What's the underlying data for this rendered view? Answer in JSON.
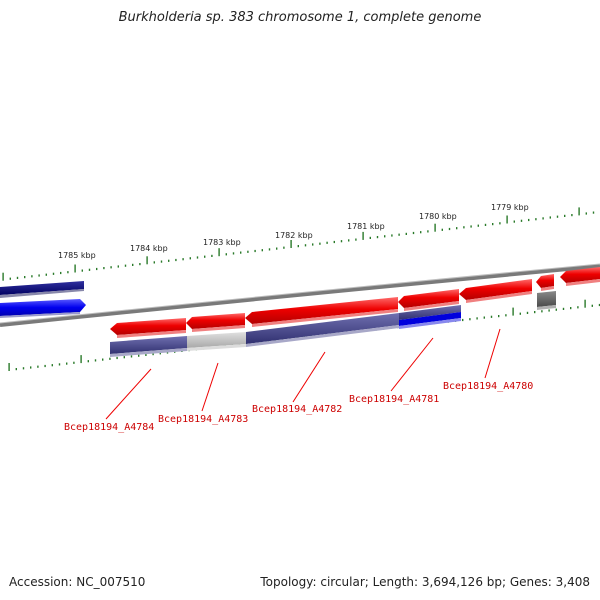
{
  "title": "Burkholderia sp. 383 chromosome 1, complete genome",
  "ticks": [
    "1785 kbp",
    "1784 kbp",
    "1783 kbp",
    "1782 kbp",
    "1781 kbp",
    "1780 kbp",
    "1779 kbp"
  ],
  "genes": [
    "Bcep18194_A4784",
    "Bcep18194_A4783",
    "Bcep18194_A4782",
    "Bcep18194_A4781",
    "Bcep18194_A4780"
  ],
  "footer": {
    "accession": "Accession: NC_007510",
    "topology": "Topology: circular; Length: 3,694,126 bp; Genes: 3,408"
  },
  "colors": {
    "forward_gene": "#ee0000",
    "reverse_gene_navy": "#000080",
    "reverse_gene_blue": "#0000ee",
    "feature_purple": "#4a4a8a",
    "feature_gray": "#c8c8c8",
    "backbone": "#777777",
    "tick": "#2a7a2a",
    "label": "#cc0000"
  }
}
